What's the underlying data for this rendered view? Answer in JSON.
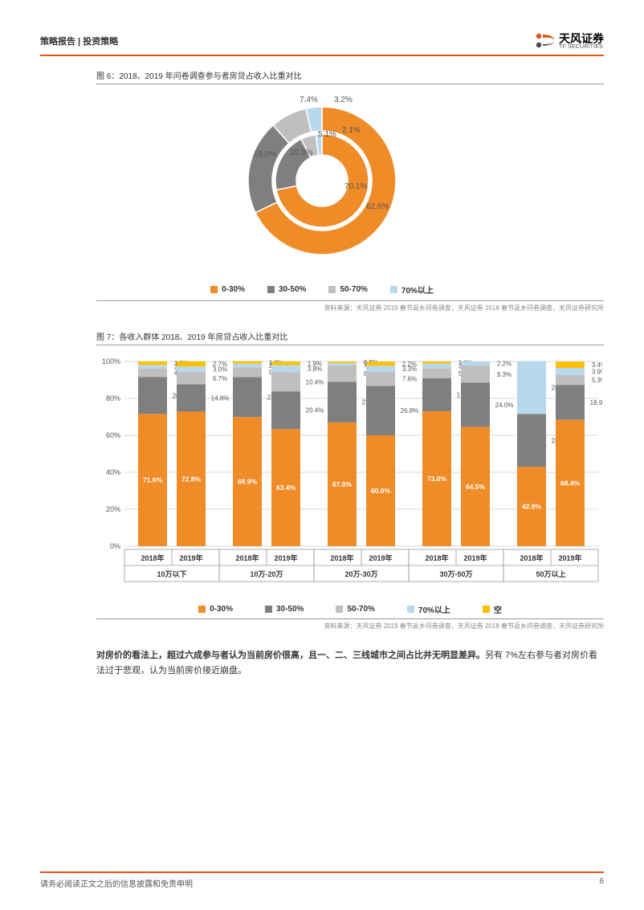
{
  "header": {
    "title": "策略报告 | 投资策略",
    "logo_cn": "天风证券",
    "logo_en": "TF SECURITIES"
  },
  "colors": {
    "accent": "#e75113",
    "c0_30": "#f08c28",
    "c30_50": "#7f7f7f",
    "c50_70": "#bfbfbf",
    "c70p": "#b8d8ec",
    "empty": "#ffc000",
    "grid": "#d9d9d9",
    "border": "#999999"
  },
  "fig6": {
    "title": "图 6：2018、2019 年问卷调查参与者房贷占收入比重对比",
    "source": "资料来源：天风证券 2019 春节返乡问卷调查，天风证券 2018 春节返乡问卷调查，天风证券研究所",
    "legend": [
      "0-30%",
      "30-50%",
      "50-70%",
      "70%以上"
    ],
    "outer": {
      "labels": [
        "62.6%",
        "19.0%",
        "7.4%",
        "3.2%"
      ],
      "values": [
        62.6,
        19.0,
        7.4,
        3.2
      ],
      "colors": [
        "#f08c28",
        "#7f7f7f",
        "#bfbfbf",
        "#b8d8ec"
      ]
    },
    "inner": {
      "labels": [
        "70.1%",
        "20.3%",
        "5.1%",
        "2.1%"
      ],
      "values": [
        70.1,
        20.3,
        5.1,
        2.1
      ],
      "colors": [
        "#f08c28",
        "#7f7f7f",
        "#bfbfbf",
        "#b8d8ec"
      ]
    }
  },
  "fig7": {
    "title": "图 7：各收入群体 2018、2019 年房贷占收入比重对比",
    "source": "资料来源：天风证券 2019 春节返乡问卷调查，天风证券 2018 春节返乡问卷调查，天风证券研究所",
    "legend": [
      "0-30%",
      "30-50%",
      "50-70%",
      "70%以上",
      "空"
    ],
    "yticks": [
      "0%",
      "20%",
      "40%",
      "60%",
      "80%",
      "100%"
    ],
    "groups": [
      "10万以下",
      "10万-20万",
      "20万-30万",
      "30万-50万",
      "50万以上"
    ],
    "years": [
      "2018年",
      "2019年"
    ],
    "series_colors": [
      "#f08c28",
      "#7f7f7f",
      "#bfbfbf",
      "#b8d8ec",
      "#ffc000"
    ],
    "bars": [
      {
        "group": 0,
        "year": 0,
        "seg": [
          71.6,
          20.0,
          4.5,
          2.0,
          1.9
        ],
        "labels": [
          "71.6%",
          "20.0%",
          "4.5%",
          "2.0%",
          "1.9%"
        ]
      },
      {
        "group": 0,
        "year": 1,
        "seg": [
          72.8,
          14.8,
          6.7,
          3.0,
          2.7
        ],
        "labels": [
          "72.8%",
          "14.8%",
          "6.7%",
          "3.0%",
          "2.7%"
        ]
      },
      {
        "group": 1,
        "year": 0,
        "seg": [
          69.9,
          21.6,
          5.2,
          2.1,
          1.3
        ],
        "labels": [
          "69.9%",
          "21.6%",
          "5.2%",
          "2.1%",
          "1.3%"
        ]
      },
      {
        "group": 1,
        "year": 1,
        "seg": [
          63.4,
          20.4,
          10.4,
          3.8,
          1.9
        ],
        "labels": [
          "63.4%",
          "20.4%",
          "10.4%",
          "3.8%",
          "1.9%"
        ]
      },
      {
        "group": 2,
        "year": 0,
        "seg": [
          67.0,
          22.0,
          8.8,
          1.3,
          0.8
        ],
        "labels": [
          "67.0%",
          "22.0%",
          "8.8%",
          "1.3%",
          "0.8%"
        ]
      },
      {
        "group": 2,
        "year": 1,
        "seg": [
          60.0,
          26.8,
          7.6,
          3.3,
          2.2
        ],
        "labels": [
          "60.0%",
          "26.8%",
          "7.6%",
          "3.3%",
          "2.2%"
        ]
      },
      {
        "group": 3,
        "year": 0,
        "seg": [
          73.0,
          17.9,
          5.3,
          2.7,
          1.1
        ],
        "labels": [
          "73.0%",
          "17.9%",
          "5.3%",
          "2.7%",
          "1.1%"
        ]
      },
      {
        "group": 3,
        "year": 1,
        "seg": [
          64.5,
          24.0,
          9.3,
          2.2,
          0.0
        ],
        "labels": [
          "64.5%",
          "24.0%",
          "9.3%",
          "2.2%",
          ""
        ]
      },
      {
        "group": 4,
        "year": 0,
        "seg": [
          42.9,
          28.6,
          0.0,
          28.6,
          0.0
        ],
        "labels": [
          "42.9%",
          "28.6%",
          "",
          "28.6%",
          ""
        ]
      },
      {
        "group": 4,
        "year": 1,
        "seg": [
          68.4,
          18.9,
          5.3,
          3.9,
          3.4
        ],
        "labels": [
          "68.4%",
          "18.9%",
          "5.3%",
          "3.9%",
          "3.4%"
        ]
      }
    ]
  },
  "body": {
    "bold": "对房价的看法上，超过六成参与者认为当前房价很高，且一、二、三线城市之间占比并无明显差异。",
    "rest": "另有 7%左右参与者对房价看法过于悲观，认为当前房价接近崩盘。"
  },
  "footer": {
    "text": "请务必阅读正文之后的信息披露和免责申明",
    "page": "6"
  }
}
